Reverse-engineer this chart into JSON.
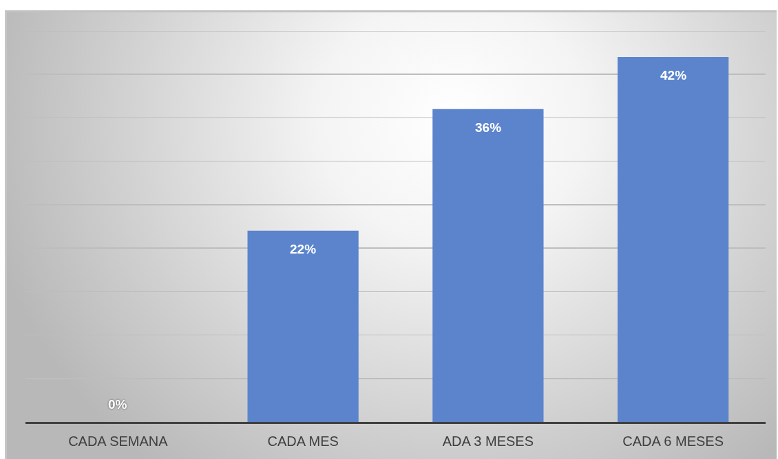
{
  "chart_data": {
    "type": "bar",
    "categories": [
      "CADA SEMANA",
      "CADA MES",
      "ADA 3 MESES",
      "CADA 6 MESES"
    ],
    "values": [
      0,
      22,
      36,
      42
    ],
    "value_labels": [
      "0%",
      "22%",
      "36%",
      "42%"
    ],
    "color": "#5b84cc",
    "ylim": [
      0,
      45
    ],
    "yticks": [
      {
        "value": 0,
        "label": null
      },
      {
        "value": 5,
        "label": null
      },
      {
        "value": 10,
        "label": null
      },
      {
        "value": 15,
        "label": null
      },
      {
        "value": 20,
        "label": null
      },
      {
        "value": 25,
        "label": null
      },
      {
        "value": 30,
        "label": null
      },
      {
        "value": 35,
        "label": null
      },
      {
        "value": 40,
        "label": null
      },
      {
        "value": 45,
        "label": null
      }
    ],
    "grid": "y",
    "tick_labels": "x"
  }
}
